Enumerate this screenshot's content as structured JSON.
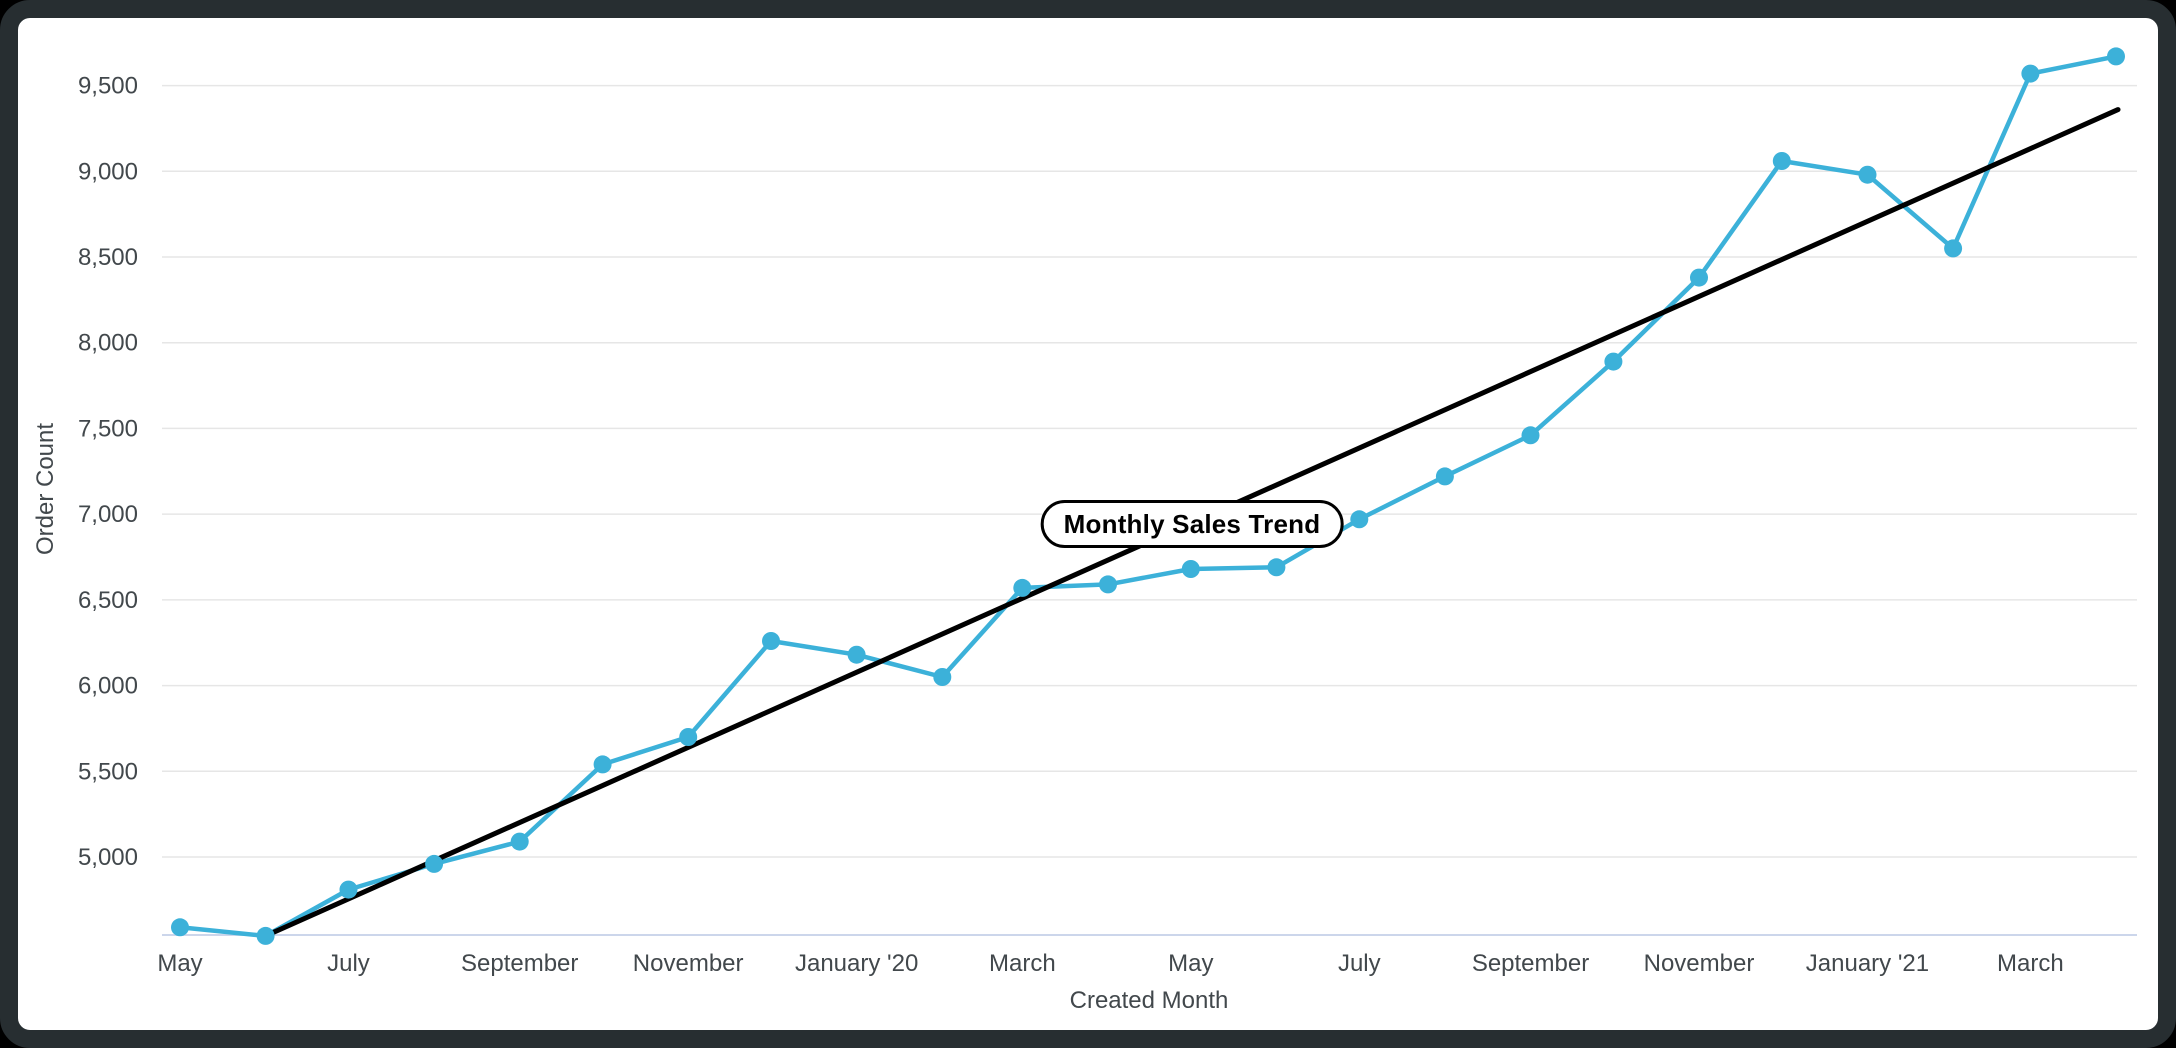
{
  "page": {
    "background": "#000000",
    "card_border_color": "#272e31"
  },
  "chart_data": {
    "type": "line",
    "annotation": "Monthly Sales Trend",
    "xlabel": "Created Month",
    "ylabel": "Order Count",
    "legend": "none",
    "grid": true,
    "x": [
      "2019-05",
      "2019-06",
      "2019-07",
      "2019-08",
      "2019-09",
      "2019-10",
      "2019-11",
      "2019-12",
      "2020-01",
      "2020-02",
      "2020-03",
      "2020-04",
      "2020-05",
      "2020-06",
      "2020-07",
      "2020-08",
      "2020-09",
      "2020-10",
      "2020-11",
      "2020-12",
      "2021-01",
      "2021-02",
      "2021-03",
      "2021-04"
    ],
    "series": [
      {
        "name": "Order Count",
        "color": "#3cb1d9",
        "marker_radius": 9,
        "line_width": 4.5,
        "values": [
          4590,
          4540,
          4810,
          4960,
          5090,
          5540,
          5700,
          6260,
          6180,
          6050,
          6570,
          6590,
          6680,
          6690,
          6970,
          7220,
          7460,
          7890,
          8380,
          9060,
          8980,
          8550,
          9570,
          9670
        ]
      }
    ],
    "trend_line": {
      "color": "#000000",
      "line_width": 5,
      "x_start": "2019-06",
      "value_start": 4540,
      "x_end": "2021-04",
      "value_end": 9360
    },
    "yticks": {
      "values": [
        5000,
        5500,
        6000,
        6500,
        7000,
        7500,
        8000,
        8500,
        9000,
        9500
      ],
      "labels": [
        "5,000",
        "5,500",
        "6,000",
        "6,500",
        "7,000",
        "7,500",
        "8,000",
        "8,500",
        "9,000",
        "9,500"
      ]
    },
    "xticks": [
      {
        "month": "2019-05",
        "label": "May"
      },
      {
        "month": "2019-07",
        "label": "July"
      },
      {
        "month": "2019-09",
        "label": "September"
      },
      {
        "month": "2019-11",
        "label": "November"
      },
      {
        "month": "2020-01",
        "label": "January '20"
      },
      {
        "month": "2020-03",
        "label": "March"
      },
      {
        "month": "2020-05",
        "label": "May"
      },
      {
        "month": "2020-07",
        "label": "July"
      },
      {
        "month": "2020-09",
        "label": "September"
      },
      {
        "month": "2020-11",
        "label": "November"
      },
      {
        "month": "2021-01",
        "label": "January '21"
      },
      {
        "month": "2021-03",
        "label": "March"
      }
    ],
    "ylim": [
      4540,
      9830
    ],
    "colors": {
      "grid": "#e6e6e6",
      "axis_line": "#ccd6eb",
      "tick_text": "#42484c"
    }
  }
}
